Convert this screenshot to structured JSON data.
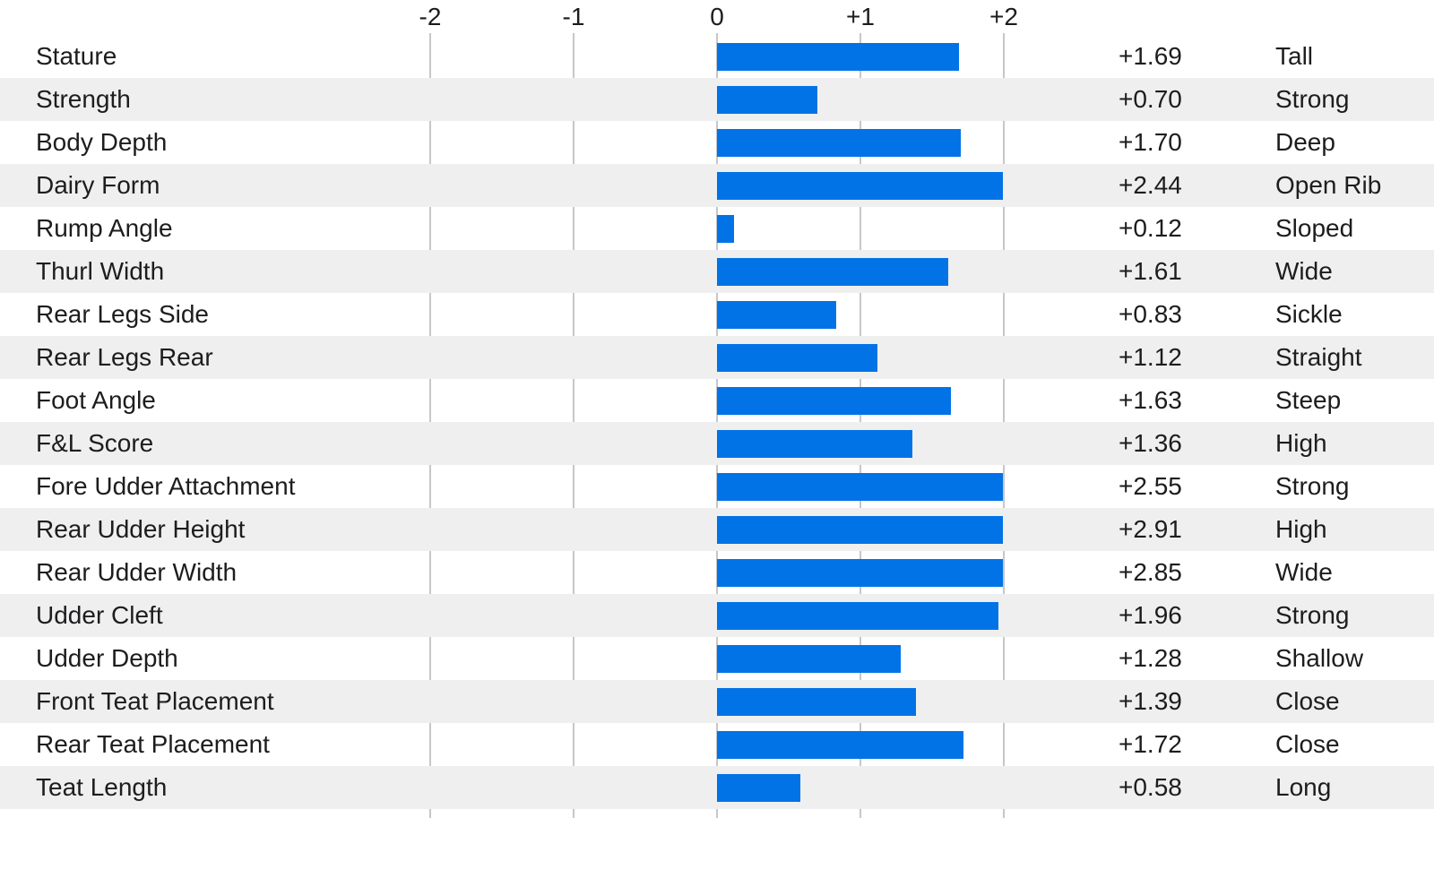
{
  "colors": {
    "bar": "#0173e6",
    "gridline": "#c7c7c9",
    "alt_row": "#efefef",
    "text": "#1d1d1f",
    "background": "#ffffff"
  },
  "chart_data": {
    "type": "bar",
    "orientation": "horizontal",
    "title": "",
    "xlabel": "",
    "ylabel": "",
    "xlim": [
      -2,
      2
    ],
    "grid": true,
    "bars_clipped_at": 2,
    "axis_ticks": [
      {
        "label": "-2",
        "value": -2
      },
      {
        "label": "-1",
        "value": -1
      },
      {
        "label": "0",
        "value": 0
      },
      {
        "label": "+1",
        "value": 1
      },
      {
        "label": "+2",
        "value": 2
      }
    ],
    "rows": [
      {
        "trait": "Stature",
        "value": 1.69,
        "value_label": "+1.69",
        "descriptor": "Tall"
      },
      {
        "trait": "Strength",
        "value": 0.7,
        "value_label": "+0.70",
        "descriptor": "Strong"
      },
      {
        "trait": "Body Depth",
        "value": 1.7,
        "value_label": "+1.70",
        "descriptor": "Deep"
      },
      {
        "trait": "Dairy Form",
        "value": 2.44,
        "value_label": "+2.44",
        "descriptor": "Open Rib"
      },
      {
        "trait": "Rump Angle",
        "value": 0.12,
        "value_label": "+0.12",
        "descriptor": "Sloped"
      },
      {
        "trait": "Thurl Width",
        "value": 1.61,
        "value_label": "+1.61",
        "descriptor": "Wide"
      },
      {
        "trait": "Rear Legs Side",
        "value": 0.83,
        "value_label": "+0.83",
        "descriptor": "Sickle"
      },
      {
        "trait": "Rear Legs Rear",
        "value": 1.12,
        "value_label": "+1.12",
        "descriptor": "Straight"
      },
      {
        "trait": "Foot Angle",
        "value": 1.63,
        "value_label": "+1.63",
        "descriptor": "Steep"
      },
      {
        "trait": "F&L Score",
        "value": 1.36,
        "value_label": "+1.36",
        "descriptor": "High"
      },
      {
        "trait": "Fore Udder Attachment",
        "value": 2.55,
        "value_label": "+2.55",
        "descriptor": "Strong"
      },
      {
        "trait": "Rear Udder Height",
        "value": 2.91,
        "value_label": "+2.91",
        "descriptor": "High"
      },
      {
        "trait": "Rear Udder Width",
        "value": 2.85,
        "value_label": "+2.85",
        "descriptor": "Wide"
      },
      {
        "trait": "Udder Cleft",
        "value": 1.96,
        "value_label": "+1.96",
        "descriptor": "Strong"
      },
      {
        "trait": "Udder Depth",
        "value": 1.28,
        "value_label": "+1.28",
        "descriptor": "Shallow"
      },
      {
        "trait": "Front Teat Placement",
        "value": 1.39,
        "value_label": "+1.39",
        "descriptor": "Close"
      },
      {
        "trait": "Rear Teat Placement",
        "value": 1.72,
        "value_label": "+1.72",
        "descriptor": "Close"
      },
      {
        "trait": "Teat Length",
        "value": 0.58,
        "value_label": "+0.58",
        "descriptor": "Long"
      }
    ]
  }
}
